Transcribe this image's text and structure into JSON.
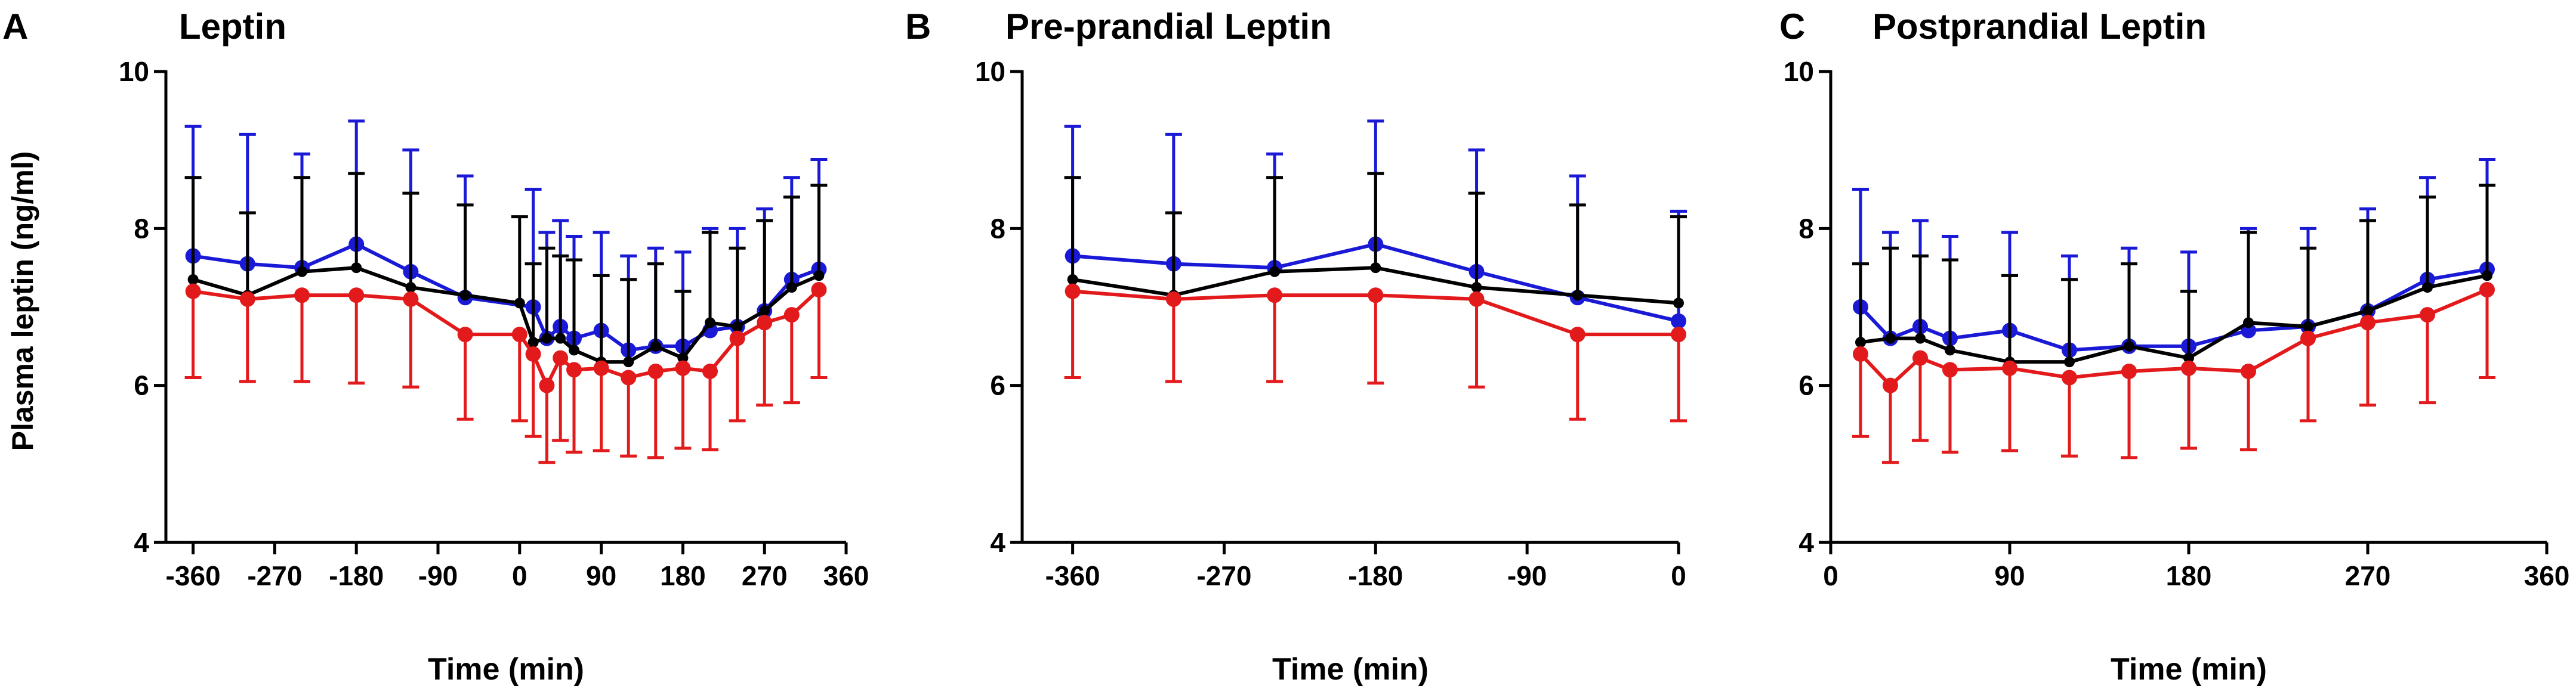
{
  "y_axis_label": "Plasma leptin (ng/ml)",
  "colors": {
    "blue": "#1a1ad6",
    "black": "#000000",
    "red": "#e31a1c"
  },
  "chart_data": [
    {
      "panel": "A",
      "type": "line",
      "title": "Leptin",
      "xlabel": "Time (min)",
      "ylabel": "Plasma leptin (ng/ml)",
      "xlim": [
        -390,
        360
      ],
      "ylim": [
        4,
        10
      ],
      "xticks": [
        -360,
        -270,
        -180,
        -90,
        0,
        90,
        180,
        270,
        360
      ],
      "xtick_labels": [
        "-360",
        "-270",
        "-180",
        "-90",
        "0",
        "90",
        "180",
        "270",
        "360"
      ],
      "yticks": [
        4,
        6,
        8,
        10
      ],
      "ytick_labels": [
        "4",
        "6",
        "8",
        "10"
      ],
      "series": [
        {
          "name": "black",
          "color": "#000000",
          "marker": "small",
          "x": [
            -360,
            -300,
            -240,
            -180,
            -120,
            -60,
            0,
            15,
            30,
            45,
            60,
            90,
            120,
            150,
            180,
            210,
            240,
            270,
            300,
            330
          ],
          "y": [
            7.35,
            7.15,
            7.45,
            7.5,
            7.25,
            7.15,
            7.05,
            6.55,
            6.6,
            6.6,
            6.45,
            6.3,
            6.3,
            6.5,
            6.35,
            6.8,
            6.75,
            6.95,
            7.25,
            7.4
          ],
          "err": [
            1.3,
            1.05,
            1.2,
            1.2,
            1.2,
            1.15,
            1.1,
            1.0,
            1.15,
            1.05,
            1.15,
            1.1,
            1.05,
            1.05,
            0.85,
            1.15,
            1.0,
            1.15,
            1.15,
            1.15
          ]
        },
        {
          "name": "blue",
          "color": "#1a1ad6",
          "marker": "large",
          "x": [
            -360,
            -300,
            -240,
            -180,
            -120,
            -60,
            15,
            30,
            45,
            60,
            90,
            120,
            150,
            180,
            210,
            240,
            270,
            300,
            330
          ],
          "y": [
            7.65,
            7.55,
            7.5,
            7.8,
            7.45,
            7.12,
            7.0,
            6.6,
            6.75,
            6.6,
            6.7,
            6.45,
            6.5,
            6.5,
            6.7,
            6.75,
            6.95,
            7.35,
            7.48
          ],
          "err": [
            1.65,
            1.65,
            1.45,
            1.57,
            1.55,
            1.55,
            1.5,
            1.35,
            1.35,
            1.3,
            1.25,
            1.2,
            1.25,
            1.2,
            1.3,
            1.25,
            1.3,
            1.3,
            1.4
          ]
        },
        {
          "name": "red",
          "color": "#e31a1c",
          "marker": "large",
          "x": [
            -360,
            -300,
            -240,
            -180,
            -120,
            -60,
            0,
            15,
            30,
            45,
            60,
            90,
            120,
            150,
            180,
            210,
            240,
            270,
            300,
            330
          ],
          "y": [
            7.2,
            7.1,
            7.15,
            7.15,
            7.1,
            6.65,
            6.65,
            6.4,
            6.0,
            6.35,
            6.2,
            6.22,
            6.1,
            6.18,
            6.22,
            6.18,
            6.6,
            6.8,
            6.9,
            7.22
          ],
          "err": [
            1.1,
            1.05,
            1.1,
            1.12,
            1.12,
            1.08,
            1.1,
            1.05,
            0.98,
            1.05,
            1.05,
            1.05,
            1.0,
            1.1,
            1.02,
            1.0,
            1.05,
            1.05,
            1.12,
            1.12
          ]
        }
      ]
    },
    {
      "panel": "B",
      "type": "line",
      "title": "Pre-prandial Leptin",
      "xlabel": "Time (min)",
      "ylabel": "",
      "xlim": [
        -390,
        0
      ],
      "ylim": [
        4,
        10
      ],
      "xticks": [
        -360,
        -270,
        -180,
        -90,
        0
      ],
      "xtick_labels": [
        "-360",
        "-270",
        "-180",
        "-90",
        "0"
      ],
      "yticks": [
        4,
        6,
        8,
        10
      ],
      "ytick_labels": [
        "4",
        "6",
        "8",
        "10"
      ],
      "series": [
        {
          "name": "black",
          "color": "#000000",
          "marker": "small",
          "x": [
            -360,
            -300,
            -240,
            -180,
            -120,
            -60,
            0
          ],
          "y": [
            7.35,
            7.15,
            7.45,
            7.5,
            7.25,
            7.15,
            7.05
          ],
          "err": [
            1.3,
            1.05,
            1.2,
            1.2,
            1.2,
            1.15,
            1.1
          ]
        },
        {
          "name": "blue",
          "color": "#1a1ad6",
          "marker": "large",
          "x": [
            -360,
            -300,
            -240,
            -180,
            -120,
            -60,
            0
          ],
          "y": [
            7.65,
            7.55,
            7.5,
            7.8,
            7.45,
            7.12,
            6.82
          ],
          "err": [
            1.65,
            1.65,
            1.45,
            1.57,
            1.55,
            1.55,
            1.4
          ]
        },
        {
          "name": "red",
          "color": "#e31a1c",
          "marker": "large",
          "x": [
            -360,
            -300,
            -240,
            -180,
            -120,
            -60,
            0
          ],
          "y": [
            7.2,
            7.1,
            7.15,
            7.15,
            7.1,
            6.65,
            6.65
          ],
          "err": [
            1.1,
            1.05,
            1.1,
            1.12,
            1.12,
            1.08,
            1.1
          ]
        }
      ]
    },
    {
      "panel": "C",
      "type": "line",
      "title": "Postprandial Leptin",
      "xlabel": "Time (min)",
      "ylabel": "",
      "xlim": [
        0,
        360
      ],
      "ylim": [
        4,
        10
      ],
      "xticks": [
        0,
        90,
        180,
        270,
        360
      ],
      "xtick_labels": [
        "0",
        "90",
        "180",
        "270",
        "360"
      ],
      "yticks": [
        4,
        6,
        8,
        10
      ],
      "ytick_labels": [
        "4",
        "6",
        "8",
        "10"
      ],
      "series": [
        {
          "name": "black",
          "color": "#000000",
          "marker": "small",
          "x": [
            15,
            30,
            45,
            60,
            90,
            120,
            150,
            180,
            210,
            240,
            270,
            300,
            330
          ],
          "y": [
            6.55,
            6.6,
            6.6,
            6.45,
            6.3,
            6.3,
            6.5,
            6.35,
            6.8,
            6.75,
            6.95,
            7.25,
            7.4
          ],
          "err": [
            1.0,
            1.15,
            1.05,
            1.15,
            1.1,
            1.05,
            1.05,
            0.85,
            1.15,
            1.0,
            1.15,
            1.15,
            1.15
          ]
        },
        {
          "name": "blue",
          "color": "#1a1ad6",
          "marker": "large",
          "x": [
            15,
            30,
            45,
            60,
            90,
            120,
            150,
            180,
            210,
            240,
            270,
            300,
            330
          ],
          "y": [
            7.0,
            6.6,
            6.75,
            6.6,
            6.7,
            6.45,
            6.5,
            6.5,
            6.7,
            6.75,
            6.95,
            7.35,
            7.48
          ],
          "err": [
            1.5,
            1.35,
            1.35,
            1.3,
            1.25,
            1.2,
            1.25,
            1.2,
            1.3,
            1.25,
            1.3,
            1.3,
            1.4
          ]
        },
        {
          "name": "red",
          "color": "#e31a1c",
          "marker": "large",
          "x": [
            15,
            30,
            45,
            60,
            90,
            120,
            150,
            180,
            210,
            240,
            270,
            300,
            330
          ],
          "y": [
            6.4,
            6.0,
            6.35,
            6.2,
            6.22,
            6.1,
            6.18,
            6.22,
            6.18,
            6.6,
            6.8,
            6.9,
            7.22
          ],
          "err": [
            1.05,
            0.98,
            1.05,
            1.05,
            1.05,
            1.0,
            1.1,
            1.02,
            1.0,
            1.05,
            1.05,
            1.12,
            1.12
          ]
        }
      ]
    }
  ]
}
